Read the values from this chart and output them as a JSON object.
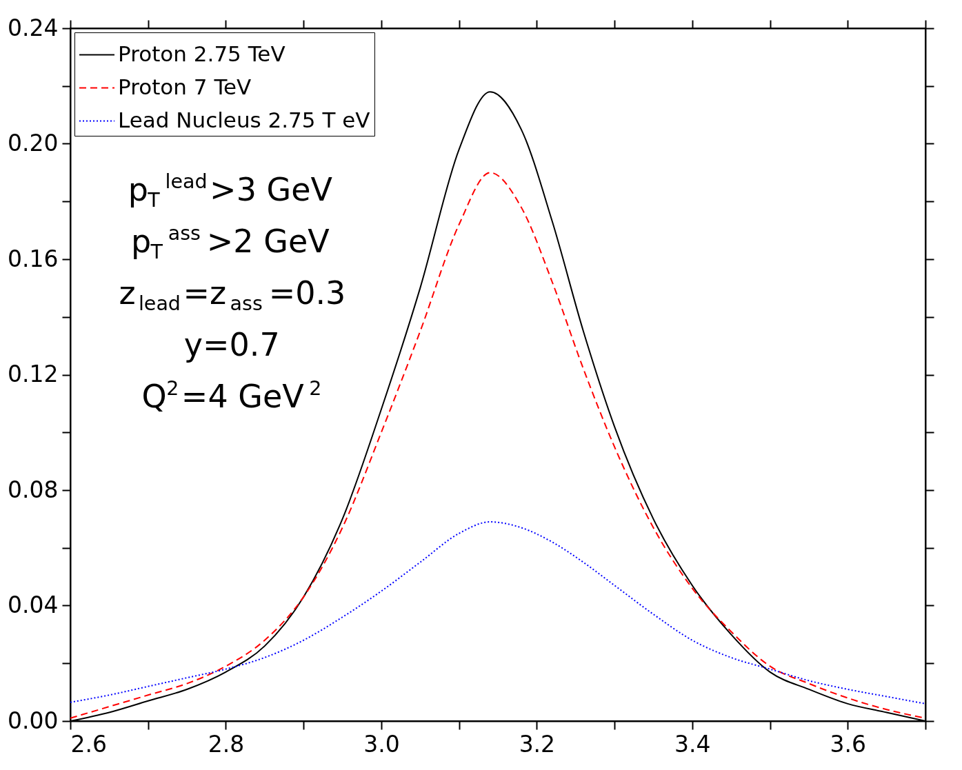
{
  "chart_data": {
    "type": "line",
    "x": [
      2.6,
      2.65,
      2.7,
      2.75,
      2.8,
      2.85,
      2.9,
      2.95,
      3.0,
      3.05,
      3.1,
      3.14,
      3.18,
      3.22,
      3.26,
      3.3,
      3.35,
      3.4,
      3.45,
      3.5,
      3.55,
      3.6,
      3.65,
      3.7
    ],
    "series": [
      {
        "name": "Proton 2.75 TeV",
        "color": "#000000",
        "line_style": "solid",
        "values": [
          0,
          0.003,
          0.007,
          0.011,
          0.017,
          0.026,
          0.043,
          0.07,
          0.108,
          0.15,
          0.198,
          0.218,
          0.205,
          0.173,
          0.135,
          0.102,
          0.07,
          0.047,
          0.03,
          0.017,
          0.011,
          0.006,
          0.003,
          0
        ]
      },
      {
        "name": "Proton 7 TeV",
        "color": "#ff0000",
        "line_style": "dashed",
        "values": [
          0.001,
          0.005,
          0.009,
          0.013,
          0.019,
          0.028,
          0.043,
          0.067,
          0.1,
          0.135,
          0.172,
          0.19,
          0.178,
          0.152,
          0.122,
          0.095,
          0.067,
          0.046,
          0.031,
          0.019,
          0.013,
          0.008,
          0.004,
          0.001
        ]
      },
      {
        "name": "Lead Nucleus 2.75 T eV",
        "color": "#0000ff",
        "line_style": "dotted",
        "values": [
          0.0065,
          0.009,
          0.012,
          0.015,
          0.018,
          0.022,
          0.028,
          0.036,
          0.045,
          0.055,
          0.065,
          0.069,
          0.067,
          0.062,
          0.055,
          0.047,
          0.037,
          0.028,
          0.022,
          0.018,
          0.014,
          0.011,
          0.0085,
          0.006
        ]
      }
    ],
    "xlim": [
      2.6,
      3.7
    ],
    "ylim": [
      0,
      0.24
    ],
    "xticks": [
      2.6,
      {
        "value": 2.7,
        "label": null
      },
      2.8,
      {
        "value": 2.9,
        "label": null
      },
      {
        "value": 3.0,
        "label": "3.0"
      },
      {
        "value": 3.1,
        "label": null
      },
      3.2,
      {
        "value": 3.3,
        "label": null
      },
      3.4,
      {
        "value": 3.5,
        "label": null
      },
      3.6,
      {
        "value": 3.7,
        "label": null
      }
    ],
    "yticks": [
      {
        "value": 0,
        "label": "0.00"
      },
      {
        "value": 0.02,
        "label": null
      },
      {
        "value": 0.04,
        "label": "0.04"
      },
      {
        "value": 0.06,
        "label": null
      },
      {
        "value": 0.08,
        "label": "0.08"
      },
      {
        "value": 0.1,
        "label": null
      },
      {
        "value": 0.12,
        "label": "0.12"
      },
      {
        "value": 0.14,
        "label": null
      },
      {
        "value": 0.16,
        "label": "0.16"
      },
      {
        "value": 0.18,
        "label": null
      },
      {
        "value": 0.2,
        "label": "0.20"
      },
      {
        "value": 0.22,
        "label": null
      },
      {
        "value": 0.24,
        "label": "0.24"
      }
    ],
    "annotations": [
      "p$_{T}$$^{lead}$>3 GeV",
      "p$_{T}$$^{ass}$>2 GeV",
      "z$_{lead}$=z$_{ass}$=0.3",
      "y=0.7",
      "Q$^{2}$=4 GeV$^{2}$"
    ],
    "legend": "top left",
    "grid": false,
    "marker": "none"
  }
}
